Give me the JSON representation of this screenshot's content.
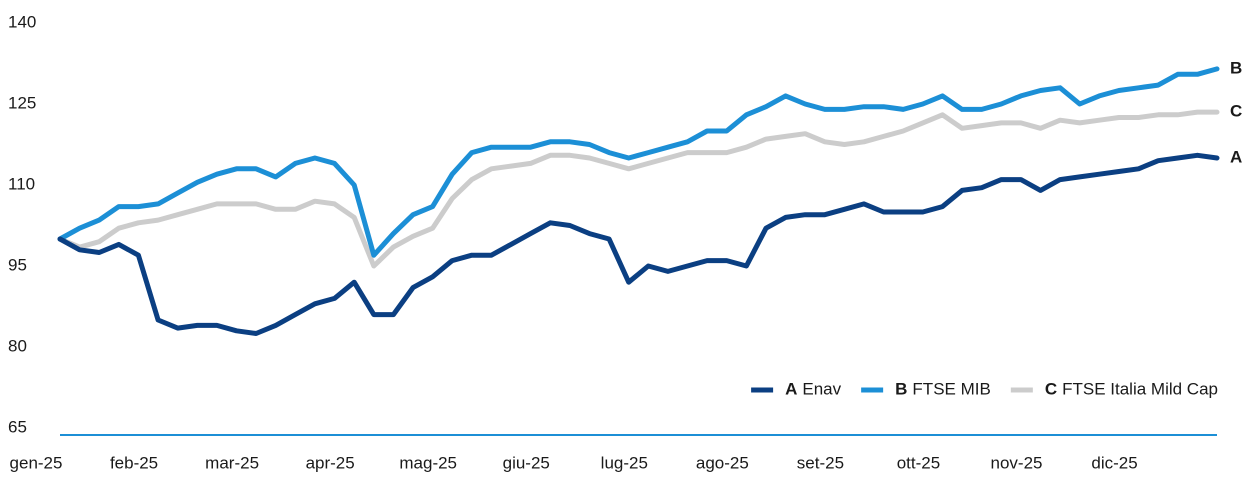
{
  "chart_data": {
    "type": "line",
    "categories": [
      "gen-25",
      null,
      null,
      null,
      null,
      "feb-25",
      null,
      null,
      null,
      null,
      "mar-25",
      null,
      null,
      null,
      null,
      "apr-25",
      null,
      null,
      null,
      null,
      "mag-25",
      null,
      null,
      null,
      null,
      "giu-25",
      null,
      null,
      null,
      null,
      "lug-25",
      null,
      null,
      null,
      null,
      "ago-25",
      null,
      null,
      null,
      null,
      "set-25",
      null,
      null,
      null,
      null,
      "ott-25",
      null,
      null,
      null,
      null,
      "nov-25",
      null,
      null,
      null,
      null,
      "dic-25",
      null,
      null,
      null,
      null
    ],
    "series": [
      {
        "label": "A",
        "name": "Enav",
        "color": "#0b3f82",
        "values": [
          100,
          98,
          97.5,
          99,
          97,
          85,
          83.5,
          84,
          84,
          83,
          82.5,
          84,
          86,
          88,
          89,
          92,
          86,
          86,
          91,
          93,
          96,
          97,
          97,
          99,
          101,
          103,
          102.5,
          101,
          100,
          92,
          95,
          94,
          95,
          96,
          96,
          95,
          102,
          104,
          104.5,
          104.5,
          105.5,
          106.5,
          105,
          105,
          105,
          106,
          109,
          109.5,
          111,
          111,
          109,
          111,
          111.5,
          112,
          112.5,
          113,
          114.5,
          115,
          115.5,
          115
        ]
      },
      {
        "label": "B",
        "name": "FTSE MIB",
        "color": "#1c8fd6",
        "values": [
          100,
          102,
          103.5,
          106,
          106,
          106.5,
          108.5,
          110.5,
          112,
          113,
          113,
          111.5,
          114,
          115,
          114,
          110,
          97,
          101,
          104.5,
          106,
          112,
          116,
          117,
          117,
          117,
          118,
          118,
          117.5,
          116,
          115,
          116,
          117,
          118,
          120,
          120,
          123,
          124.5,
          126.5,
          125,
          124,
          124,
          124.5,
          124.5,
          124,
          125,
          126.5,
          124,
          124,
          125,
          126.5,
          127.5,
          128,
          125,
          126.5,
          127.5,
          128,
          128.5,
          130.5,
          130.5,
          131.5
        ]
      },
      {
        "label": "C",
        "name": "FTSE Italia Mild Cap",
        "color": "#cccccc",
        "values": [
          100,
          98.5,
          99.5,
          102,
          103,
          103.5,
          104.5,
          105.5,
          106.5,
          106.5,
          106.5,
          105.5,
          105.5,
          107,
          106.5,
          104,
          95,
          98.5,
          100.5,
          102,
          107.5,
          111,
          113,
          113.5,
          114,
          115.5,
          115.5,
          115,
          114,
          113,
          114,
          115,
          116,
          116,
          116,
          117,
          118.5,
          119,
          119.5,
          118,
          117.5,
          118,
          119,
          120,
          121.5,
          123,
          120.5,
          121,
          121.5,
          121.5,
          120.5,
          122,
          121.5,
          122,
          122.5,
          122.5,
          123,
          123,
          123.5,
          123.5
        ]
      }
    ],
    "ylim": [
      65,
      140
    ],
    "yticks": [
      65,
      80,
      95,
      110,
      125,
      140
    ],
    "grid": false,
    "legend": "bottom-right"
  }
}
